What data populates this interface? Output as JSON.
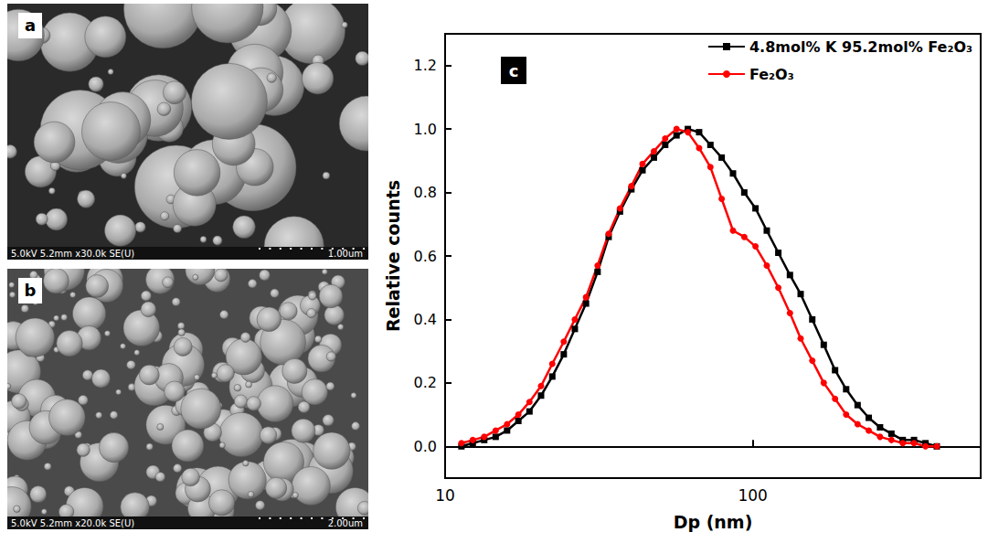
{
  "panels": [
    {
      "label": "a",
      "info": "5.0kV 5.2mm x30.0k SE(U)",
      "scale_bar": "1.00um"
    },
    {
      "label": "b",
      "info": "5.0kV 5.2mm x20.0k SE(U)",
      "scale_bar": "2.00um"
    }
  ],
  "chart_data": {
    "type": "line",
    "panel_label": "c",
    "x_label": "Dp (nm)",
    "y_label": "Relative counts",
    "log": "x",
    "grid": false,
    "legend": "upper right",
    "xlim": [
      10,
      550
    ],
    "xticks": [
      10,
      100
    ],
    "ylim": [
      -0.1,
      1.3
    ],
    "yticks": [
      {
        "value": 0,
        "label": "0.0"
      },
      {
        "value": 0.2,
        "label": "0.2"
      },
      {
        "value": 0.4,
        "label": "0.4"
      },
      {
        "value": 0.6,
        "label": "0.6"
      },
      {
        "value": 0.8,
        "label": "0.8"
      },
      {
        "value": 1,
        "label": "1.0"
      },
      {
        "value": 1.2,
        "label": "1.2"
      }
    ],
    "x": [
      11.3,
      12.3,
      13.4,
      14.6,
      15.9,
      17.3,
      18.8,
      20.5,
      22.3,
      24.3,
      26.4,
      28.7,
      31.3,
      34.0,
      37.0,
      40.3,
      43.8,
      47.7,
      51.9,
      56.5,
      61.5,
      66.9,
      72.8,
      79.2,
      86.2,
      93.8,
      102,
      111,
      121,
      132,
      143,
      156,
      170,
      185,
      201,
      219,
      238,
      259,
      282,
      307,
      334,
      364,
      396
    ],
    "series": [
      {
        "name": "4.8mol% K 95.2mol% Fe₂O₃",
        "color": "#000000",
        "marker": "square",
        "line_style": "solid",
        "values": [
          0.0,
          0.01,
          0.02,
          0.03,
          0.05,
          0.08,
          0.11,
          0.16,
          0.22,
          0.29,
          0.37,
          0.45,
          0.55,
          0.66,
          0.74,
          0.81,
          0.87,
          0.91,
          0.95,
          0.98,
          1.0,
          0.99,
          0.95,
          0.91,
          0.86,
          0.8,
          0.75,
          0.68,
          0.61,
          0.54,
          0.48,
          0.4,
          0.32,
          0.24,
          0.18,
          0.13,
          0.09,
          0.06,
          0.04,
          0.02,
          0.02,
          0.01,
          0.0
        ]
      },
      {
        "name": "Fe₂O₃",
        "color": "#ff0000",
        "marker": "circle",
        "line_style": "solid",
        "values": [
          0.01,
          0.02,
          0.03,
          0.05,
          0.07,
          0.1,
          0.14,
          0.19,
          0.26,
          0.33,
          0.4,
          0.47,
          0.57,
          0.67,
          0.75,
          0.82,
          0.89,
          0.93,
          0.97,
          1.0,
          0.99,
          0.94,
          0.88,
          0.78,
          0.68,
          0.66,
          0.63,
          0.57,
          0.5,
          0.42,
          0.34,
          0.27,
          0.2,
          0.15,
          0.1,
          0.07,
          0.05,
          0.03,
          0.02,
          0.01,
          0.01,
          0.0,
          0.0
        ]
      }
    ]
  }
}
